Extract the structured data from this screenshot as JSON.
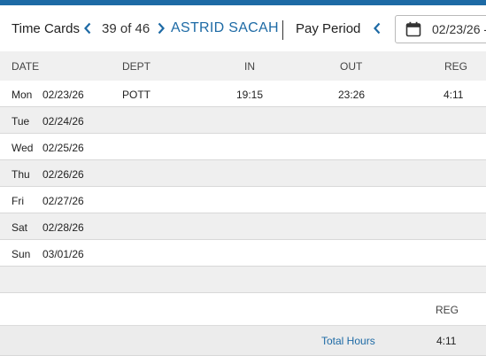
{
  "header": {
    "title": "Time Cards",
    "counter": "39 of 46",
    "employee_name": "ASTRID SACAH",
    "pay_period_label": "Pay Period",
    "date_value": "02/23/26 -"
  },
  "columns": {
    "date": "DATE",
    "dept": "DEPT",
    "in": "IN",
    "out": "OUT",
    "reg": "REG"
  },
  "rows": [
    {
      "day": "Mon",
      "date": "02/23/26",
      "dept": "POTT",
      "in": "19:15",
      "out": "23:26",
      "reg": "4:11"
    },
    {
      "day": "Tue",
      "date": "02/24/26",
      "dept": "",
      "in": "",
      "out": "",
      "reg": ""
    },
    {
      "day": "Wed",
      "date": "02/25/26",
      "dept": "",
      "in": "",
      "out": "",
      "reg": ""
    },
    {
      "day": "Thu",
      "date": "02/26/26",
      "dept": "",
      "in": "",
      "out": "",
      "reg": ""
    },
    {
      "day": "Fri",
      "date": "02/27/26",
      "dept": "",
      "in": "",
      "out": "",
      "reg": ""
    },
    {
      "day": "Sat",
      "date": "02/28/26",
      "dept": "",
      "in": "",
      "out": "",
      "reg": ""
    },
    {
      "day": "Sun",
      "date": "03/01/26",
      "dept": "",
      "in": "",
      "out": "",
      "reg": ""
    }
  ],
  "summary": {
    "reg_label": "REG",
    "total_label": "Total Hours",
    "total_value": "4:11"
  },
  "icons": {
    "prev": "chevron-left-icon",
    "next": "chevron-right-icon",
    "calendar": "calendar-icon"
  },
  "colors": {
    "accent": "#1d6aa5",
    "row_alt": "#efefef",
    "header_bg": "#f0f0f0"
  }
}
